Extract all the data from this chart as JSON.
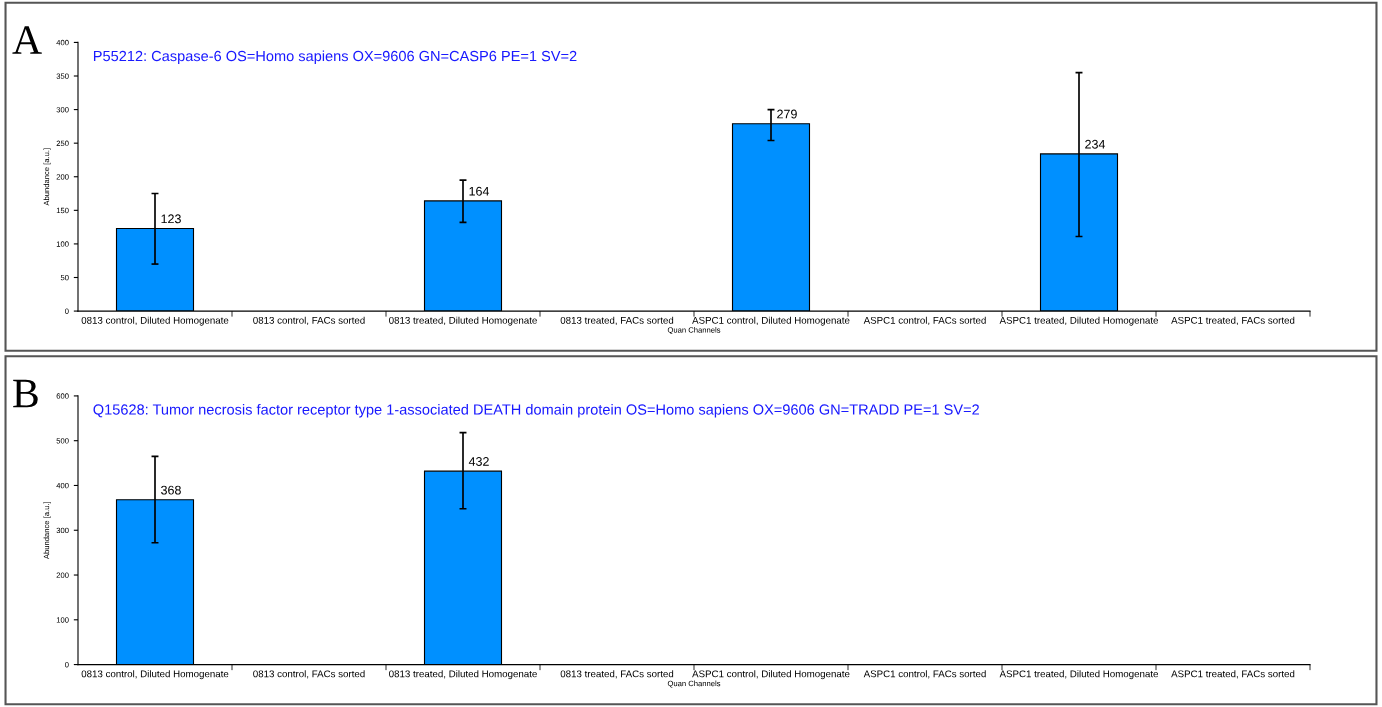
{
  "chart_data": [
    {
      "type": "bar",
      "title": "P55212: Caspase-6 OS=Homo sapiens OX=9606 GN=CASP6 PE=1 SV=2",
      "xlabel": "Quan Channels",
      "ylabel": "Abundance [a.u.]",
      "annotations": [
        "A"
      ],
      "categories": [
        "0813 control, Diluted Homogenate",
        "0813 control, FACs sorted",
        "0813 treated, Diluted Homogenate",
        "0813 treated, FACs sorted",
        "ASPC1 control, Diluted Homogenate",
        "ASPC1 control, FACs sorted",
        "ASPC1 treated, Diluted Homogenate",
        "ASPC1 treated, FACs sorted"
      ],
      "values": [
        123,
        null,
        164,
        null,
        279,
        null,
        234,
        null
      ],
      "errors": [
        [
          70,
          175
        ],
        null,
        [
          132,
          195
        ],
        null,
        [
          254,
          300
        ],
        null,
        [
          111,
          355
        ],
        null
      ],
      "value_labels": [
        "123",
        null,
        "164",
        null,
        "279",
        null,
        "234",
        null
      ],
      "color": "#0090ff",
      "ylim": [
        0,
        400
      ],
      "yticks": [
        0,
        50,
        100,
        150,
        200,
        250,
        300,
        350,
        400
      ],
      "grid": false,
      "legend": false
    },
    {
      "type": "bar",
      "title": "Q15628: Tumor necrosis factor receptor type 1-associated DEATH domain protein OS=Homo sapiens OX=9606 GN=TRADD PE=1 SV=2",
      "xlabel": "Quan Channels",
      "ylabel": "Abundance [a.u.]",
      "annotations": [
        "B"
      ],
      "categories": [
        "0813 control, Diluted Homogenate",
        "0813 control, FACs sorted",
        "0813 treated, Diluted Homogenate",
        "0813 treated, FACs sorted",
        "ASPC1 control, Diluted Homogenate",
        "ASPC1 control, FACs sorted",
        "ASPC1 treated, Diluted Homogenate",
        "ASPC1 treated, FACs sorted"
      ],
      "values": [
        368,
        null,
        432,
        null,
        null,
        null,
        null,
        null
      ],
      "errors": [
        [
          272,
          465
        ],
        null,
        [
          348,
          518
        ],
        null,
        null,
        null,
        null,
        null
      ],
      "value_labels": [
        "368",
        null,
        "432",
        null,
        null,
        null,
        null,
        null
      ],
      "color": "#0090ff",
      "ylim": [
        0,
        600
      ],
      "yticks": [
        0,
        100,
        200,
        300,
        400,
        500,
        600
      ],
      "grid": false,
      "legend": false
    }
  ]
}
